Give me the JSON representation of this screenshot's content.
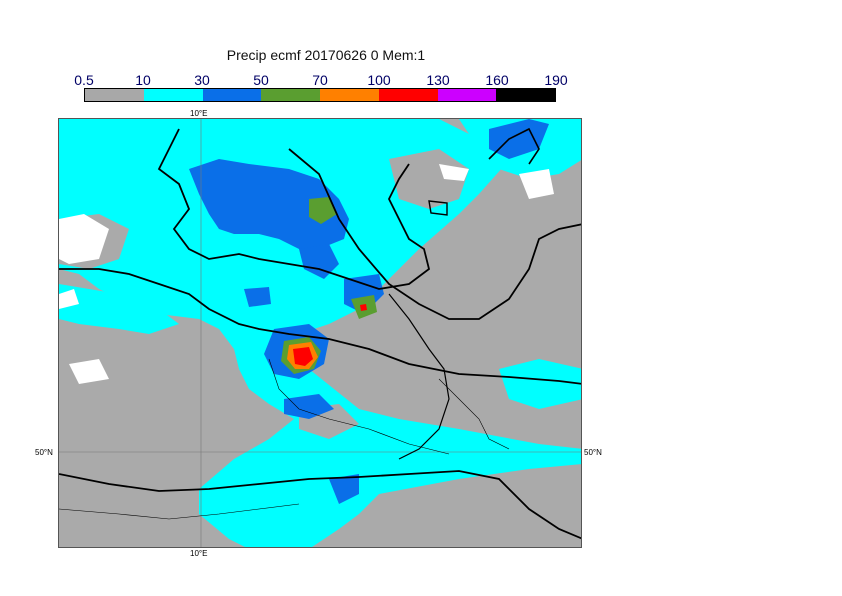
{
  "title": "Precip ecmf 20170626 0 Mem:1",
  "legend": {
    "levels": [
      "0.5",
      "10",
      "30",
      "50",
      "70",
      "100",
      "130",
      "160",
      "190"
    ],
    "colors": [
      "#a8a8a8",
      "#00ffff",
      "#0a6fe8",
      "#5a9e30",
      "#ff8000",
      "#ff0000",
      "#cc00ff",
      "#000000"
    ]
  },
  "map": {
    "lon_top": "10°E",
    "lon_bottom": "10°E",
    "lat_left": "50°N",
    "lat_right": "50°N",
    "colors": {
      "land_dry": "#aaaaaa",
      "no_data": "#ffffff",
      "c10": "#00ffff",
      "c30": "#0a6fe8",
      "c50": "#5a9e30",
      "c70": "#ff8000",
      "c100": "#ff0000",
      "line": "#000000"
    }
  }
}
